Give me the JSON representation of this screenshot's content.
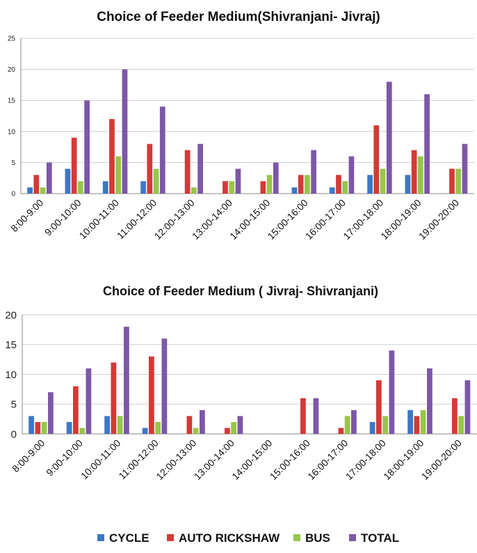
{
  "legend": [
    {
      "name": "CYCLE",
      "color": "#3b78c4"
    },
    {
      "name": "AUTO RICKSHAW",
      "color": "#d43a36"
    },
    {
      "name": "BUS",
      "color": "#97c64a"
    },
    {
      "name": "TOTAL",
      "color": "#7d57a8"
    }
  ],
  "chart_data": [
    {
      "type": "bar",
      "title": "Choice of Feeder Medium(Shivranjani- Jivraj)",
      "categories": [
        "8:00-9:00",
        "9:00-10:00",
        "10:00-11:00",
        "11:00-12:00",
        "12:00-13:00",
        "13:00-14:00",
        "14:00-15:00",
        "15:00-16:00",
        "16:00-17:00",
        "17:00-18:00",
        "18:00-19:00",
        "19:00-20:00"
      ],
      "series": [
        {
          "name": "CYCLE",
          "values": [
            1,
            4,
            2,
            2,
            0,
            0,
            0,
            1,
            1,
            3,
            3,
            0
          ]
        },
        {
          "name": "AUTO RICKSHAW",
          "values": [
            3,
            9,
            12,
            8,
            7,
            2,
            2,
            3,
            3,
            11,
            7,
            4
          ]
        },
        {
          "name": "BUS",
          "values": [
            1,
            2,
            6,
            4,
            1,
            2,
            3,
            3,
            2,
            4,
            6,
            4
          ]
        },
        {
          "name": "TOTAL",
          "values": [
            5,
            15,
            20,
            14,
            8,
            4,
            5,
            7,
            6,
            18,
            16,
            8
          ]
        }
      ],
      "ylim": [
        0,
        25
      ],
      "yticks": [
        0,
        5,
        10,
        15,
        20,
        25
      ],
      "grid": true,
      "legend": "bottom"
    },
    {
      "type": "bar",
      "title": "Choice of Feeder Medium ( Jivraj- Shivranjani)",
      "categories": [
        "8:00-9:00",
        "9:00-10:00",
        "10:00-11:00",
        "11:00-12:00",
        "12:00-13:00",
        "13:00-14:00",
        "14:00-15:00",
        "15:00-16:00",
        "16:00-17:00",
        "17:00-18:00",
        "18:00-19:00",
        "19:00-20:00"
      ],
      "series": [
        {
          "name": "CYCLE",
          "values": [
            3,
            2,
            3,
            1,
            0,
            0,
            0,
            0,
            0,
            2,
            4,
            0
          ]
        },
        {
          "name": "AUTO RICKSHAW",
          "values": [
            2,
            8,
            12,
            13,
            3,
            1,
            0,
            6,
            1,
            9,
            3,
            6
          ]
        },
        {
          "name": "BUS",
          "values": [
            2,
            1,
            3,
            2,
            1,
            2,
            0,
            0,
            3,
            3,
            4,
            3
          ]
        },
        {
          "name": "TOTAL",
          "values": [
            7,
            11,
            18,
            16,
            4,
            3,
            0,
            6,
            4,
            14,
            11,
            9
          ]
        }
      ],
      "ylim": [
        0,
        20
      ],
      "yticks": [
        0,
        5,
        10,
        15,
        20
      ],
      "grid": true,
      "legend": "bottom"
    }
  ]
}
